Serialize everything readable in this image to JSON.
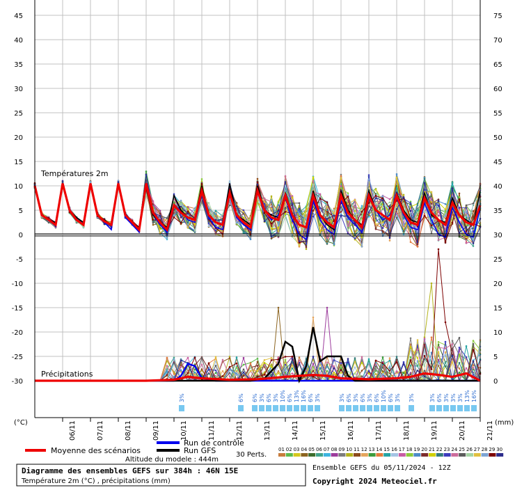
{
  "chart_data": {
    "type": "line",
    "title": "Diagramme des ensembles GEFS sur 384h : 46N 15E",
    "subtitle": "Température 2m (°C) , précipitations (mm)",
    "section_labels": {
      "temperature": "Températures 2m",
      "precip": "Précipitations"
    },
    "y_left_unit": "(°C)",
    "y_right_unit": "(mm)",
    "y_left_ticks": [
      "45",
      "40",
      "35",
      "30",
      "25",
      "20",
      "15",
      "10",
      "5",
      "0",
      "-5",
      "-10",
      "-15",
      "-20",
      "-25",
      "-30"
    ],
    "y_right_ticks": [
      "75",
      "70",
      "65",
      "60",
      "55",
      "50",
      "45",
      "40",
      "35",
      "30",
      "25",
      "20",
      "15",
      "10",
      "5",
      "0"
    ],
    "ylim_temp": [
      -30,
      45
    ],
    "ylim_precip": [
      0,
      75
    ],
    "x_date_labels": [
      "06/11",
      "07/11",
      "08/11",
      "09/11",
      "10/11",
      "11/11",
      "12/11",
      "13/11",
      "14/11",
      "15/11",
      "16/11",
      "17/11",
      "18/11",
      "19/11",
      "20/11",
      "21/11"
    ],
    "x_range_hours": [
      0,
      384
    ],
    "grid": true,
    "temp_mean": [
      [
        0,
        10
      ],
      [
        6,
        4
      ],
      [
        12,
        3
      ],
      [
        18,
        2
      ],
      [
        24,
        10.5
      ],
      [
        30,
        5
      ],
      [
        36,
        3
      ],
      [
        42,
        2
      ],
      [
        48,
        10.5
      ],
      [
        54,
        4
      ],
      [
        60,
        2.7
      ],
      [
        66,
        2
      ],
      [
        72,
        10.5
      ],
      [
        78,
        4
      ],
      [
        84,
        2.5
      ],
      [
        90,
        1
      ],
      [
        96,
        10.5
      ],
      [
        102,
        4.5
      ],
      [
        108,
        2.5
      ],
      [
        114,
        1
      ],
      [
        120,
        6
      ],
      [
        126,
        4.5
      ],
      [
        132,
        3.5
      ],
      [
        138,
        3
      ],
      [
        144,
        9
      ],
      [
        150,
        4
      ],
      [
        156,
        2.5
      ],
      [
        162,
        2
      ],
      [
        168,
        8.5
      ],
      [
        174,
        4
      ],
      [
        180,
        2.5
      ],
      [
        186,
        1.5
      ],
      [
        192,
        9
      ],
      [
        198,
        5
      ],
      [
        204,
        3.5
      ],
      [
        210,
        3
      ],
      [
        216,
        8
      ],
      [
        222,
        4
      ],
      [
        228,
        2
      ],
      [
        234,
        1.5
      ],
      [
        240,
        8
      ],
      [
        246,
        4
      ],
      [
        252,
        2.5
      ],
      [
        258,
        1.5
      ],
      [
        264,
        8
      ],
      [
        270,
        4.5
      ],
      [
        276,
        3
      ],
      [
        282,
        1.5
      ],
      [
        288,
        8
      ],
      [
        294,
        5
      ],
      [
        300,
        4
      ],
      [
        306,
        3
      ],
      [
        312,
        8
      ],
      [
        318,
        4.5
      ],
      [
        324,
        2.5
      ],
      [
        330,
        2
      ],
      [
        336,
        7.5
      ],
      [
        342,
        4.5
      ],
      [
        348,
        3
      ],
      [
        354,
        2
      ],
      [
        360,
        6.5
      ],
      [
        366,
        4
      ],
      [
        372,
        2.5
      ],
      [
        378,
        2
      ],
      [
        384,
        6
      ]
    ],
    "temp_control": [
      [
        0,
        10
      ],
      [
        6,
        4
      ],
      [
        12,
        3
      ],
      [
        18,
        2.5
      ],
      [
        24,
        10.5
      ],
      [
        30,
        5
      ],
      [
        36,
        3
      ],
      [
        42,
        2
      ],
      [
        48,
        10.5
      ],
      [
        54,
        4
      ],
      [
        60,
        2.5
      ],
      [
        66,
        1
      ],
      [
        72,
        10.5
      ],
      [
        78,
        3.5
      ],
      [
        84,
        2
      ],
      [
        90,
        0.5
      ],
      [
        96,
        10.5
      ],
      [
        102,
        4
      ],
      [
        108,
        2
      ],
      [
        114,
        0.5
      ],
      [
        120,
        6
      ],
      [
        126,
        5
      ],
      [
        132,
        3
      ],
      [
        138,
        2.5
      ],
      [
        144,
        8.5
      ],
      [
        150,
        3.5
      ],
      [
        156,
        1.5
      ],
      [
        162,
        1
      ],
      [
        168,
        8.5
      ],
      [
        174,
        3.5
      ],
      [
        180,
        2
      ],
      [
        186,
        1
      ],
      [
        192,
        9
      ],
      [
        198,
        5
      ],
      [
        204,
        3
      ],
      [
        210,
        4
      ],
      [
        216,
        7.5
      ],
      [
        222,
        3
      ],
      [
        228,
        0
      ],
      [
        234,
        -1
      ],
      [
        240,
        7
      ],
      [
        246,
        3
      ],
      [
        252,
        1
      ],
      [
        258,
        0
      ],
      [
        264,
        7
      ],
      [
        270,
        3.5
      ],
      [
        276,
        2
      ],
      [
        282,
        0.5
      ],
      [
        288,
        7.5
      ],
      [
        294,
        5
      ],
      [
        300,
        3
      ],
      [
        306,
        4
      ],
      [
        312,
        7.5
      ],
      [
        318,
        4
      ],
      [
        324,
        1.5
      ],
      [
        330,
        1
      ],
      [
        336,
        6.5
      ],
      [
        342,
        3
      ],
      [
        348,
        0
      ],
      [
        354,
        -0.5
      ],
      [
        360,
        5.5
      ],
      [
        366,
        2.5
      ],
      [
        372,
        0
      ],
      [
        378,
        -0.5
      ],
      [
        384,
        5.5
      ]
    ],
    "temp_gfs": [
      [
        0,
        10
      ],
      [
        6,
        4
      ],
      [
        12,
        3
      ],
      [
        18,
        2.5
      ],
      [
        24,
        10.5
      ],
      [
        30,
        5
      ],
      [
        36,
        3.5
      ],
      [
        42,
        2.5
      ],
      [
        48,
        10.5
      ],
      [
        54,
        4
      ],
      [
        60,
        3
      ],
      [
        66,
        2
      ],
      [
        72,
        10.5
      ],
      [
        78,
        4
      ],
      [
        84,
        2.5
      ],
      [
        90,
        1.5
      ],
      [
        96,
        10.5
      ],
      [
        102,
        4
      ],
      [
        108,
        2.5
      ],
      [
        114,
        1.5
      ],
      [
        120,
        8
      ],
      [
        126,
        5
      ],
      [
        132,
        3.5
      ],
      [
        138,
        3
      ],
      [
        144,
        10
      ],
      [
        150,
        4
      ],
      [
        156,
        2.5
      ],
      [
        162,
        2
      ],
      [
        168,
        10.5
      ],
      [
        174,
        4
      ],
      [
        180,
        3
      ],
      [
        186,
        2
      ],
      [
        192,
        10
      ],
      [
        198,
        5
      ],
      [
        204,
        4
      ],
      [
        210,
        3.5
      ],
      [
        216,
        8.5
      ],
      [
        222,
        4
      ],
      [
        228,
        2
      ],
      [
        234,
        1.5
      ],
      [
        240,
        9
      ],
      [
        246,
        4
      ],
      [
        252,
        2
      ],
      [
        258,
        1
      ],
      [
        264,
        9
      ],
      [
        270,
        5
      ],
      [
        276,
        3
      ],
      [
        282,
        2
      ],
      [
        288,
        9
      ],
      [
        294,
        5
      ],
      [
        300,
        4
      ],
      [
        306,
        3
      ],
      [
        312,
        8.5
      ],
      [
        318,
        5
      ],
      [
        324,
        3
      ],
      [
        330,
        2.5
      ],
      [
        336,
        8.5
      ],
      [
        342,
        4
      ],
      [
        348,
        3
      ],
      [
        354,
        2.5
      ],
      [
        360,
        7.5
      ],
      [
        366,
        4
      ],
      [
        372,
        3
      ],
      [
        378,
        2
      ],
      [
        384,
        9
      ]
    ],
    "precip_mean": [
      [
        0,
        0
      ],
      [
        48,
        0
      ],
      [
        96,
        0
      ],
      [
        120,
        0.2
      ],
      [
        132,
        0.8
      ],
      [
        144,
        0.5
      ],
      [
        168,
        0.2
      ],
      [
        192,
        0.3
      ],
      [
        216,
        0.8
      ],
      [
        228,
        1
      ],
      [
        240,
        1.2
      ],
      [
        252,
        1
      ],
      [
        264,
        0.5
      ],
      [
        288,
        0.3
      ],
      [
        312,
        0.5
      ],
      [
        324,
        0.8
      ],
      [
        336,
        1.5
      ],
      [
        348,
        1.2
      ],
      [
        360,
        0.8
      ],
      [
        372,
        1.5
      ],
      [
        384,
        0
      ]
    ],
    "precip_control": [
      [
        0,
        0
      ],
      [
        120,
        0
      ],
      [
        126,
        1
      ],
      [
        132,
        3.5
      ],
      [
        138,
        3
      ],
      [
        144,
        0.5
      ],
      [
        156,
        0
      ],
      [
        216,
        0
      ],
      [
        240,
        0
      ],
      [
        264,
        0
      ],
      [
        288,
        0
      ],
      [
        312,
        0
      ],
      [
        336,
        0
      ],
      [
        360,
        0
      ],
      [
        384,
        0
      ]
    ],
    "precip_gfs": [
      [
        0,
        0
      ],
      [
        168,
        0
      ],
      [
        186,
        0
      ],
      [
        198,
        0.5
      ],
      [
        204,
        2
      ],
      [
        210,
        3.5
      ],
      [
        216,
        8
      ],
      [
        222,
        7
      ],
      [
        228,
        0
      ],
      [
        234,
        3
      ],
      [
        240,
        11
      ],
      [
        246,
        4
      ],
      [
        252,
        5
      ],
      [
        264,
        5
      ],
      [
        270,
        1
      ],
      [
        276,
        0
      ],
      [
        300,
        0
      ],
      [
        384,
        0
      ]
    ],
    "snow_markers": [
      {
        "h": 132,
        "p": "3%"
      },
      {
        "h": 183,
        "p": "6%"
      },
      {
        "h": 195,
        "p": "6%"
      },
      {
        "h": 201,
        "p": "3%"
      },
      {
        "h": 207,
        "p": "6%"
      },
      {
        "h": 213,
        "p": "3%"
      },
      {
        "h": 219,
        "p": "10%"
      },
      {
        "h": 225,
        "p": "6%"
      },
      {
        "h": 231,
        "p": "13%"
      },
      {
        "h": 237,
        "p": "16%"
      },
      {
        "h": 243,
        "p": "6%"
      },
      {
        "h": 249,
        "p": "3%"
      },
      {
        "h": 270,
        "p": "3%"
      },
      {
        "h": 276,
        "p": "6%"
      },
      {
        "h": 282,
        "p": "3%"
      },
      {
        "h": 288,
        "p": "6%"
      },
      {
        "h": 294,
        "p": "3%"
      },
      {
        "h": 300,
        "p": "6%"
      },
      {
        "h": 306,
        "p": "10%"
      },
      {
        "h": 312,
        "p": "6%"
      },
      {
        "h": 318,
        "p": "3%"
      },
      {
        "h": 330,
        "p": "3%"
      },
      {
        "h": 348,
        "p": "3%"
      },
      {
        "h": 354,
        "p": "6%"
      },
      {
        "h": 360,
        "p": "3%"
      },
      {
        "h": 366,
        "p": "3%"
      },
      {
        "h": 372,
        "p": "3%"
      },
      {
        "h": 378,
        "p": "13%"
      },
      {
        "h": 384,
        "p": "16%"
      }
    ],
    "member_colors": [
      "#c87c3c",
      "#5cba4c",
      "#d4c81c",
      "#8c6420",
      "#3c6c2c",
      "#40a48c",
      "#3cb4e0",
      "#9c3c9c",
      "#7c7c7c",
      "#b4b41c",
      "#8c4c1c",
      "#e4a45c",
      "#3c9c3c",
      "#e47c3c",
      "#24a4a4",
      "#a4c4e4",
      "#c85ca4",
      "#8ccc3c",
      "#4c8cc8",
      "#7c2c2c",
      "#d0d000",
      "#347c7c",
      "#3c3cbc",
      "#cc6c9c",
      "#5c5c5c",
      "#a4d4a4",
      "#e0c040",
      "#7ca4d4",
      "#7c0000",
      "#2c2c8c"
    ],
    "member_labels": [
      "01",
      "02",
      "03",
      "04",
      "05",
      "06",
      "07",
      "08",
      "09",
      "10",
      "11",
      "12",
      "13",
      "14",
      "15",
      "16",
      "17",
      "18",
      "19",
      "20",
      "21",
      "22",
      "23",
      "24",
      "25",
      "26",
      "27",
      "28",
      "29",
      "30"
    ],
    "colors": {
      "mean": "#ee0000",
      "control": "#0000ee",
      "gfs": "#000000",
      "grid": "#c0c0c0",
      "snow": "#78c8f0"
    }
  },
  "legend": {
    "mean_label": "Moyenne des scénarios",
    "control_label": "Run de contrôle",
    "gfs_label": "Run GFS",
    "altitude": "Altitude du modele : 444m",
    "perts_label": "30 Perts."
  },
  "footer": {
    "title": "Diagramme des ensembles GEFS sur 384h : 46N 15E",
    "subtitle": "Température 2m (°C) , précipitations (mm)",
    "run_label": "Ensemble GEFS du 05/11/2024 - 12Z",
    "copyright": "Copyright 2024 Meteociel.fr"
  }
}
